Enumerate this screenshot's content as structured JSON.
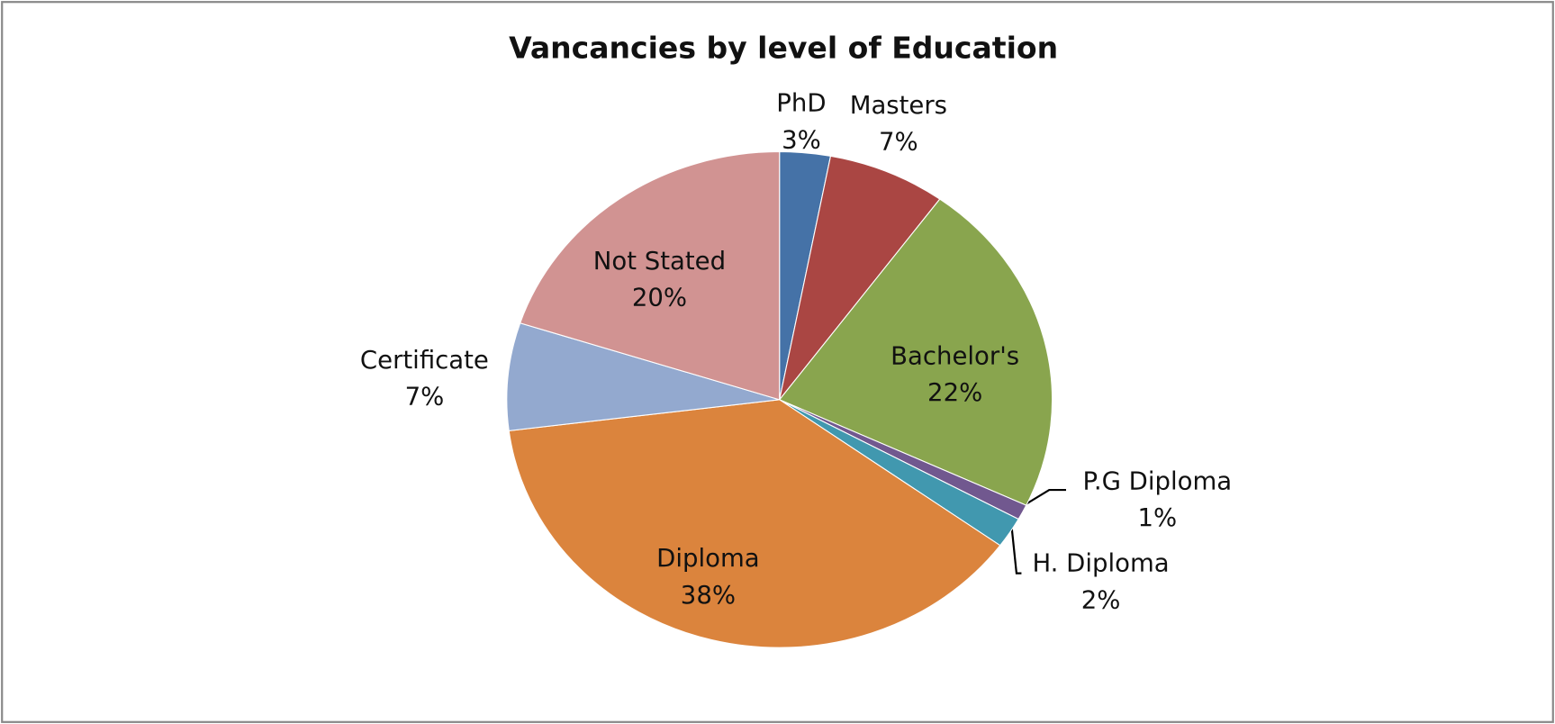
{
  "chart_data": {
    "type": "pie",
    "title": "Vancancies by level of Education",
    "categories": [
      "PhD",
      "Masters",
      "Bachelor's",
      "P.G Diploma",
      "H. Diploma",
      "Diploma",
      "Certificate",
      "Not Stated"
    ],
    "values": [
      3,
      7,
      22,
      1,
      2,
      38,
      7,
      20
    ],
    "value_labels": [
      "3%",
      "7%",
      "22%",
      "1%",
      "2%",
      "38%",
      "7%",
      "20%"
    ],
    "colors": [
      "#4572a7",
      "#aa4643",
      "#89a54e",
      "#71588f",
      "#4198af",
      "#db843d",
      "#93a9cf",
      "#d19392"
    ]
  }
}
